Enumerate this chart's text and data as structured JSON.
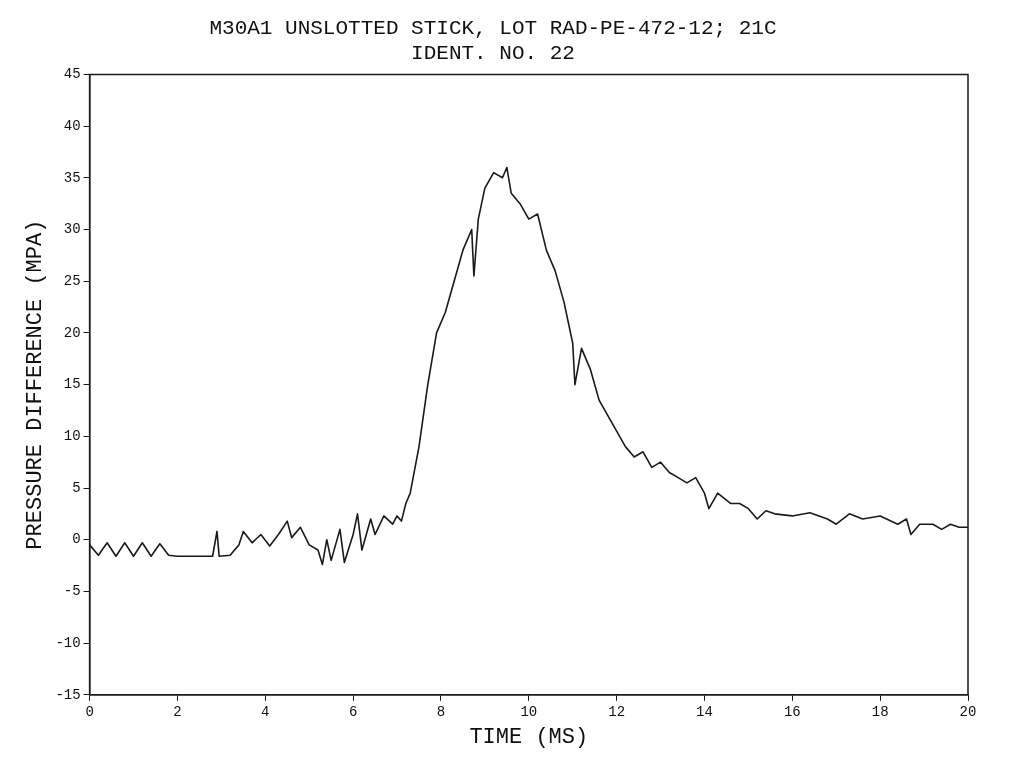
{
  "chart_data": {
    "type": "line",
    "title": "M30A1 UNSLOTTED STICK, LOT RAD-PE-472-12; 21C",
    "subtitle": "IDENT. NO. 22",
    "xlabel": "TIME (MS)",
    "ylabel": "PRESSURE DIFFERENCE (MPA)",
    "xlim": [
      0,
      20
    ],
    "xticks": [
      0,
      2,
      4,
      6,
      8,
      10,
      12,
      14,
      16,
      18,
      20
    ],
    "ylim": [
      -15,
      45
    ],
    "yticks": [
      -15,
      -10,
      -5,
      0,
      5,
      10,
      15,
      20,
      25,
      30,
      35,
      40,
      45
    ],
    "grid": false,
    "legend": false,
    "marker": "none",
    "line_style": "solid",
    "series": [
      {
        "color": "#1a1a1a",
        "x": [
          0,
          0.2,
          0.4,
          0.6,
          0.8,
          1.0,
          1.2,
          1.4,
          1.6,
          1.8,
          2.0,
          2.5,
          2.8,
          2.9,
          2.95,
          3.2,
          3.4,
          3.5,
          3.7,
          3.9,
          4.1,
          4.3,
          4.5,
          4.6,
          4.8,
          5.0,
          5.2,
          5.3,
          5.4,
          5.5,
          5.7,
          5.8,
          6.0,
          6.1,
          6.2,
          6.4,
          6.5,
          6.7,
          6.9,
          7.0,
          7.1,
          7.2,
          7.3,
          7.5,
          7.7,
          7.9,
          8.1,
          8.3,
          8.5,
          8.7,
          8.75,
          8.85,
          9.0,
          9.2,
          9.4,
          9.5,
          9.6,
          9.8,
          10.0,
          10.2,
          10.4,
          10.6,
          10.8,
          11.0,
          11.05,
          11.2,
          11.4,
          11.6,
          11.8,
          12.0,
          12.2,
          12.4,
          12.6,
          12.8,
          13.0,
          13.2,
          13.4,
          13.6,
          13.8,
          14.0,
          14.1,
          14.3,
          14.6,
          14.8,
          15.0,
          15.2,
          15.4,
          15.6,
          16.0,
          16.4,
          16.8,
          17.0,
          17.3,
          17.6,
          18.0,
          18.4,
          18.6,
          18.7,
          18.9,
          19.2,
          19.4,
          19.6,
          19.8,
          20.0
        ],
        "values": [
          -0.5,
          -1.5,
          -0.3,
          -1.6,
          -0.3,
          -1.6,
          -0.3,
          -1.6,
          -0.4,
          -1.5,
          -1.6,
          -1.6,
          -1.6,
          0.8,
          -1.6,
          -1.5,
          -0.5,
          0.8,
          -0.3,
          0.5,
          -0.6,
          0.5,
          1.8,
          0.2,
          1.2,
          -0.5,
          -1.0,
          -2.4,
          0,
          -2.0,
          1.0,
          -2.2,
          0.5,
          2.5,
          -1.0,
          2.0,
          0.5,
          2.3,
          1.5,
          2.3,
          1.8,
          3.5,
          4.5,
          9,
          15,
          20,
          22,
          25,
          28,
          30,
          25.5,
          31,
          34,
          35.5,
          35,
          36,
          33.5,
          32.5,
          31,
          31.5,
          28,
          26,
          23,
          19,
          15,
          18.5,
          16.5,
          13.5,
          12,
          10.5,
          9,
          8,
          8.5,
          7,
          7.5,
          6.5,
          6,
          5.5,
          6,
          4.5,
          3,
          4.5,
          3.5,
          3.5,
          3,
          2,
          2.8,
          2.5,
          2.3,
          2.6,
          2.0,
          1.5,
          2.5,
          2.0,
          2.3,
          1.5,
          2.0,
          0.5,
          1.5,
          1.5,
          1.0,
          1.5,
          1.2,
          1.2
        ]
      }
    ]
  }
}
